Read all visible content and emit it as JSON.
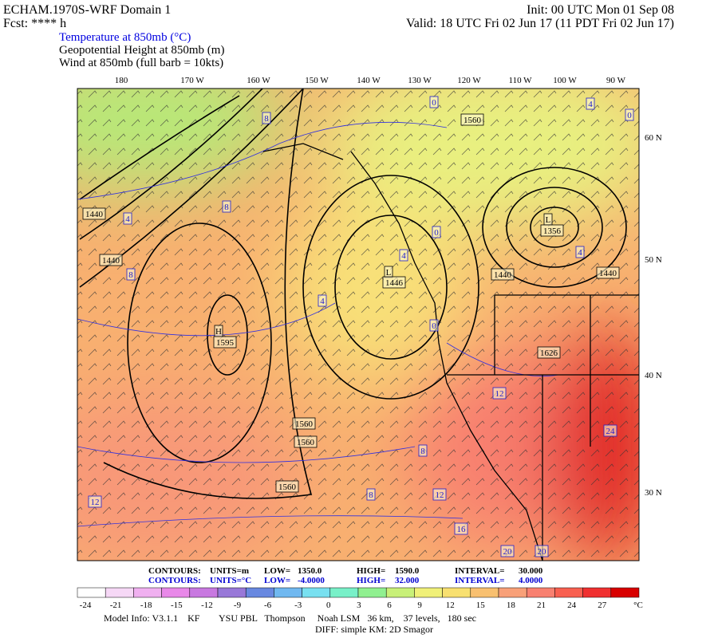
{
  "header": {
    "left": [
      "ECHAM.1970S-WRF Domain 1",
      "Fcst: **** h"
    ],
    "right": [
      "Init: 00 UTC Mon 01 Sep 08",
      "Valid: 18 UTC Fri 02 Jun 17 (11 PDT Fri 02 Jun 17)"
    ],
    "fields": [
      "Temperature at 850mb (°C)",
      "Geopotential Height at 850mb (m)",
      "Wind at 850mb (full barb = 10kts)"
    ]
  },
  "map": {
    "longitudes": [
      "180",
      "170 W",
      "160 W",
      "150 W",
      "140 W",
      "130 W",
      "120 W",
      "110 W",
      "100 W",
      "90 W"
    ],
    "latitudes": [
      "60 N",
      "50 N",
      "40 N",
      "30 N"
    ],
    "temperature_labels": [
      "0",
      "4",
      "8",
      "0",
      "8",
      "4",
      "0",
      "8",
      "4",
      "4",
      "4",
      "0",
      "12",
      "8",
      "24",
      "8",
      "12",
      "12",
      "16",
      "20",
      "20"
    ],
    "height_labels": [
      "1560",
      "1440",
      "1440",
      "L",
      "1356",
      "L",
      "1446",
      "1440",
      "1440",
      "H",
      "1595",
      "1626",
      "1560",
      "1560",
      "1560"
    ]
  },
  "footer": {
    "line1": [
      "CONTOURS:",
      "UNITS=m",
      "LOW=",
      "1350.0",
      "HIGH=",
      "1590.0",
      "INTERVAL=",
      "30.000"
    ],
    "line2": [
      "CONTOURS:",
      "UNITS=°C",
      "LOW=",
      "-4.0000",
      "HIGH=",
      "32.000",
      "INTERVAL=",
      "4.0000"
    ],
    "colorbar": {
      "labels": [
        "-24",
        "-21",
        "-18",
        "-15",
        "-12",
        "-9",
        "-6",
        "-3",
        "0",
        "3",
        "6",
        "9",
        "12",
        "15",
        "18",
        "21",
        "24",
        "27"
      ],
      "unit": "°C",
      "colors": [
        "#ffffff",
        "#f6d8f6",
        "#f0b0f0",
        "#e888e8",
        "#c878e0",
        "#9878d8",
        "#6888e0",
        "#70b8f0",
        "#78e0f0",
        "#78f0c8",
        "#90f090",
        "#c8f078",
        "#f0f078",
        "#f8e070",
        "#f8c070",
        "#f8a078",
        "#f88070",
        "#f86050",
        "#f03030",
        "#d80000"
      ]
    },
    "model_info": "Model Info: V3.1.1    KF        YSU PBL   Thompson     Noah LSM   36 km,    37 levels,   180 sec",
    "diff": "DIFF: simple KM: 2D Smagor"
  }
}
